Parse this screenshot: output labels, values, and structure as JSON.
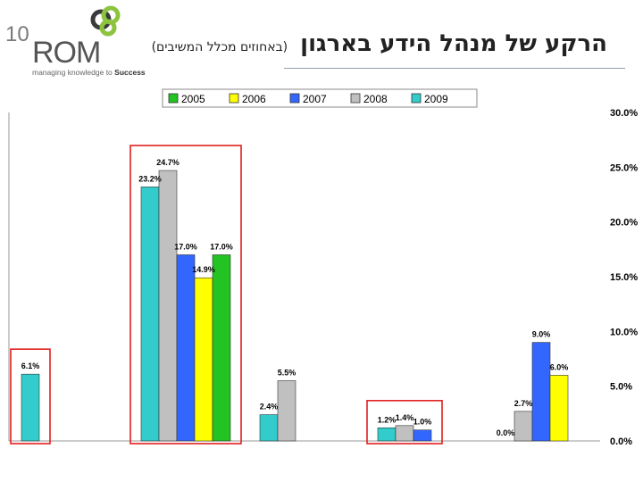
{
  "header": {
    "title": "הרקע של מנהל הידע בארגון",
    "subtitle": "(באחוזים מכלל המשיבים)"
  },
  "logo": {
    "number": "10",
    "name": "ROM",
    "tagline_prefix": "managing knowledge to ",
    "tagline_emphasis": "Success",
    "brand_color": "#8cc43f",
    "dark_color": "#3a3a3a"
  },
  "chart_data": {
    "type": "bar",
    "series": [
      {
        "name": "2005",
        "color": "#22c322"
      },
      {
        "name": "2006",
        "color": "#ffff00"
      },
      {
        "name": "2007",
        "color": "#3366ff"
      },
      {
        "name": "2008",
        "color": "#c0c0c0"
      },
      {
        "name": "2009",
        "color": "#33cccc"
      }
    ],
    "groups": [
      {
        "bars": [
          {
            "series": "2009",
            "value": 6.1,
            "label": "6.1%"
          }
        ],
        "highlighted": true
      },
      {
        "bars": [
          {
            "series": "2009",
            "value": 23.2,
            "label": "23.2%"
          },
          {
            "series": "2008",
            "value": 24.7,
            "label": "24.7%"
          },
          {
            "series": "2007",
            "value": 17.0,
            "label": "17.0%"
          },
          {
            "series": "2006",
            "value": 14.9,
            "label": "14.9%"
          },
          {
            "series": "2005",
            "value": 17.0,
            "label": "17.0%"
          }
        ],
        "highlighted": true
      },
      {
        "bars": [
          {
            "series": "2009",
            "value": 2.4,
            "label": "2.4%"
          },
          {
            "series": "2008",
            "value": 5.5,
            "label": "5.5%"
          }
        ],
        "highlighted": false
      },
      {
        "bars": [
          {
            "series": "2009",
            "value": 1.2,
            "label": "1.2%"
          },
          {
            "series": "2008",
            "value": 1.4,
            "label": "1.4%"
          },
          {
            "series": "2007",
            "value": 1.0,
            "label": "1.0%"
          }
        ],
        "highlighted": true
      },
      {
        "bars": [
          {
            "series": "2009",
            "value": 0.0,
            "label": "0.0%"
          },
          {
            "series": "2008",
            "value": 2.7,
            "label": "2.7%"
          },
          {
            "series": "2007",
            "value": 9.0,
            "label": "9.0%"
          },
          {
            "series": "2006",
            "value": 6.0,
            "label": "6.0%"
          }
        ],
        "highlighted": false
      }
    ],
    "y_ticks": [
      "0.0%",
      "5.0%",
      "10.0%",
      "15.0%",
      "20.0%",
      "25.0%",
      "30.0%"
    ],
    "ylim": [
      0,
      30
    ],
    "y_axis_side": "right",
    "legend_position": "top-center",
    "highlight_color": "#e02020",
    "grid": false,
    "xlabel": "",
    "ylabel": ""
  }
}
